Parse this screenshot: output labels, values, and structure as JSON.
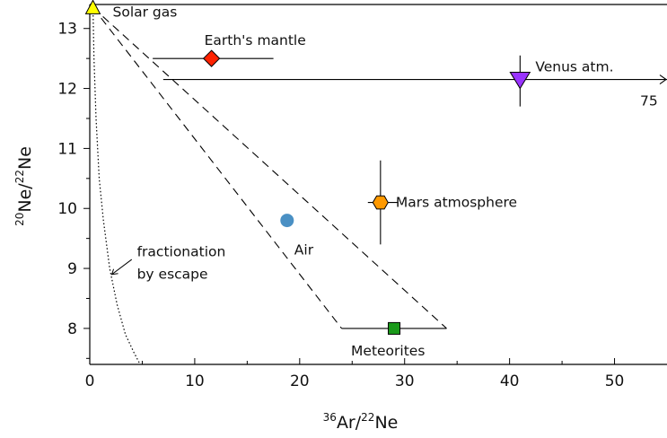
{
  "chart_data": {
    "type": "scatter",
    "title": "",
    "xlabel": {
      "sup1": "36",
      "main1": "Ar/",
      "sup2": "22",
      "main2": "Ne"
    },
    "ylabel": {
      "sup1": "20",
      "main1": "Ne/",
      "sup2": "22",
      "main2": "Ne"
    },
    "xlim": [
      0,
      55
    ],
    "ylim": [
      7.4,
      13.4
    ],
    "xticks": [
      0,
      10,
      20,
      30,
      40,
      50
    ],
    "yticks": [
      8,
      9,
      10,
      11,
      12,
      13
    ],
    "grid": false,
    "points": [
      {
        "name": "Solar gas",
        "x": 0.3,
        "y": 13.35,
        "marker": "triangle-up",
        "color": "#ffff00",
        "label": "Solar gas"
      },
      {
        "name": "Earth's mantle",
        "x": 11.6,
        "y": 12.5,
        "marker": "diamond",
        "color": "#ff2200",
        "xerr": [
          6,
          17.5
        ],
        "label": "Earth's mantle"
      },
      {
        "name": "Venus atm.",
        "x": 41,
        "y": 12.15,
        "marker": "triangle-down",
        "color": "#9933ff",
        "xerr": [
          7,
          55
        ],
        "yerr": [
          11.7,
          12.55
        ],
        "label": "Venus atm.",
        "arrow_value": "75"
      },
      {
        "name": "Mars atmosphere",
        "x": 27.7,
        "y": 10.1,
        "marker": "hexagon",
        "color": "#ff9900",
        "xerr": [
          26.5,
          29.3
        ],
        "yerr": [
          9.4,
          10.8
        ],
        "label": "Mars atmosphere"
      },
      {
        "name": "Air",
        "x": 18.8,
        "y": 9.8,
        "marker": "circle",
        "color": "#4a90c4",
        "label": "Air"
      },
      {
        "name": "Meteorites",
        "x": 29,
        "y": 8.0,
        "marker": "square",
        "color": "#1a9a1a",
        "xerr": [
          24,
          34
        ],
        "label": "Meteorites"
      }
    ],
    "mixing_lines": [
      {
        "from": [
          0.3,
          13.35
        ],
        "to": [
          24,
          8.0
        ],
        "style": "dashed"
      },
      {
        "from": [
          0.3,
          13.35
        ],
        "to": [
          34,
          8.0
        ],
        "style": "dashed"
      }
    ],
    "fractionation_curve": {
      "style": "dotted",
      "points": [
        [
          0.3,
          13.4
        ],
        [
          0.4,
          12.5
        ],
        [
          0.6,
          11.5
        ],
        [
          0.9,
          10.5
        ],
        [
          1.3,
          9.8
        ],
        [
          1.9,
          9.0
        ],
        [
          2.6,
          8.4
        ],
        [
          3.4,
          7.9
        ],
        [
          4.2,
          7.6
        ],
        [
          4.8,
          7.4
        ]
      ],
      "label_line1": "fractionation",
      "label_line2": "by escape"
    }
  }
}
